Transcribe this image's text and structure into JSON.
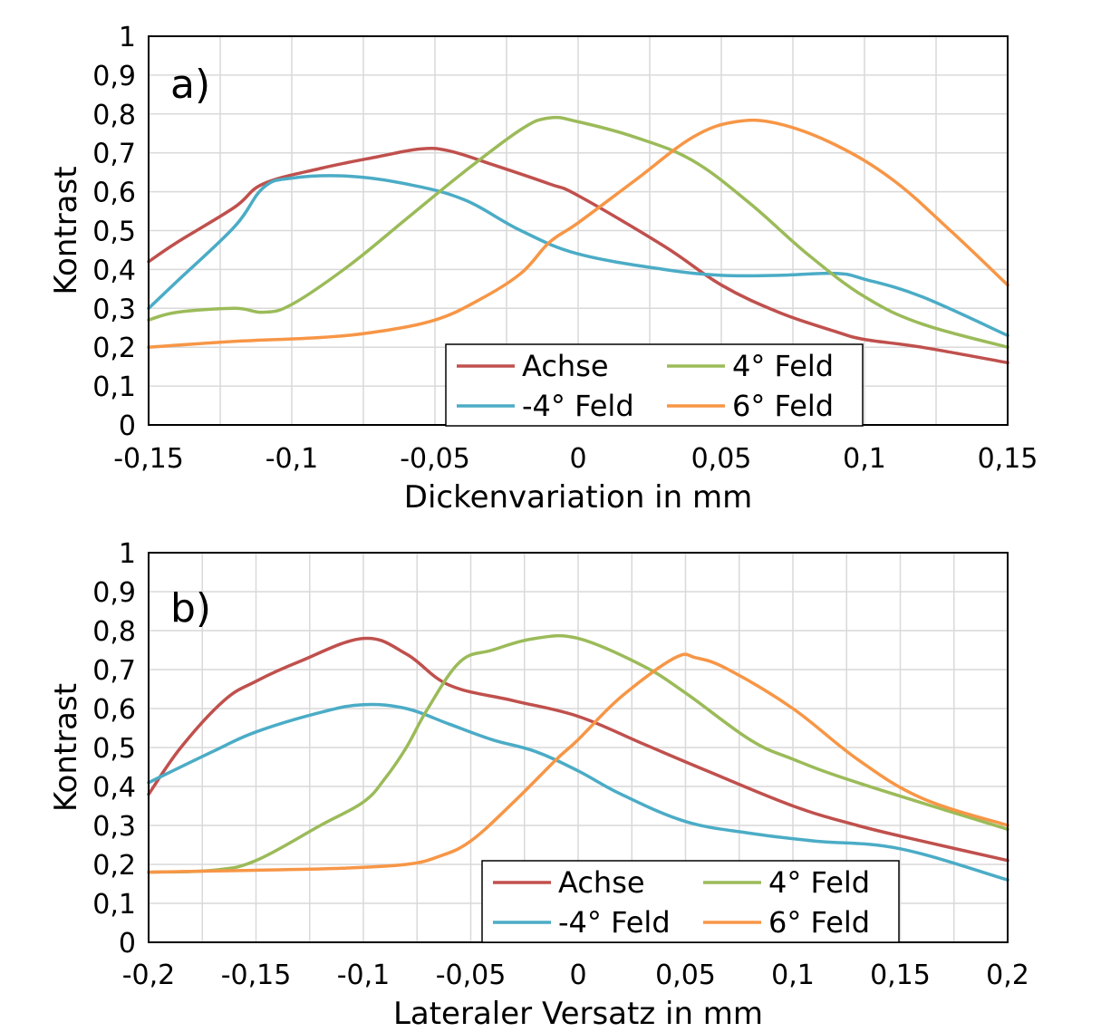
{
  "colors": {
    "achse": "#c0504d",
    "minus4_feld": "#4bacc6",
    "plus4_feld": "#9bbb59",
    "plus6_feld": "#f79646",
    "grid": "#d9d9d9",
    "frame": "#000000"
  },
  "chart_data": [
    {
      "type": "line",
      "panel_label": "a)",
      "xlabel": "Dickenvariation in mm",
      "ylabel": "Kontrast",
      "xlim": [
        -0.15,
        0.15
      ],
      "ylim": [
        0,
        1
      ],
      "x_ticks": [
        -0.15,
        -0.1,
        -0.05,
        0,
        0.05,
        0.1,
        0.15
      ],
      "x_tick_labels": [
        "-0,15",
        "-0,1",
        "-0,05",
        "0",
        "0,05",
        "0,1",
        "0,15"
      ],
      "y_ticks": [
        0,
        0.1,
        0.2,
        0.3,
        0.4,
        0.5,
        0.6,
        0.7,
        0.8,
        0.9,
        1
      ],
      "y_tick_labels": [
        "0",
        "0,1",
        "0,2",
        "0,3",
        "0,4",
        "0,5",
        "0,6",
        "0,7",
        "0,8",
        "0,9",
        "1"
      ],
      "grid": true,
      "legend_placement": "bottom-right",
      "series": [
        {
          "name": "Achse",
          "color_key": "achse",
          "x": [
            -0.15,
            -0.14,
            -0.12,
            -0.11,
            -0.09,
            -0.07,
            -0.055,
            -0.045,
            -0.03,
            -0.01,
            0.0,
            0.03,
            0.05,
            0.07,
            0.09,
            0.1,
            0.12,
            0.15
          ],
          "y": [
            0.42,
            0.47,
            0.56,
            0.62,
            0.66,
            0.69,
            0.71,
            0.705,
            0.67,
            0.62,
            0.59,
            0.46,
            0.36,
            0.29,
            0.24,
            0.22,
            0.2,
            0.16
          ]
        },
        {
          "name": "-4°  Feld",
          "color_key": "minus4_feld",
          "x": [
            -0.15,
            -0.14,
            -0.12,
            -0.11,
            -0.1,
            -0.08,
            -0.06,
            -0.04,
            -0.02,
            0.0,
            0.03,
            0.05,
            0.07,
            0.09,
            0.1,
            0.12,
            0.15
          ],
          "y": [
            0.3,
            0.37,
            0.51,
            0.61,
            0.635,
            0.64,
            0.62,
            0.58,
            0.5,
            0.44,
            0.4,
            0.385,
            0.385,
            0.39,
            0.375,
            0.33,
            0.23
          ]
        },
        {
          "name": "4°  Feld",
          "color_key": "plus4_feld",
          "x": [
            -0.15,
            -0.14,
            -0.12,
            -0.11,
            -0.1,
            -0.08,
            -0.06,
            -0.04,
            -0.02,
            -0.01,
            0.0,
            0.02,
            0.04,
            0.06,
            0.08,
            0.1,
            0.12,
            0.15
          ],
          "y": [
            0.27,
            0.29,
            0.3,
            0.29,
            0.31,
            0.41,
            0.53,
            0.65,
            0.76,
            0.79,
            0.78,
            0.74,
            0.68,
            0.57,
            0.44,
            0.33,
            0.26,
            0.2
          ]
        },
        {
          "name": "6°  Feld",
          "color_key": "plus6_feld",
          "x": [
            -0.15,
            -0.12,
            -0.09,
            -0.07,
            -0.05,
            -0.035,
            -0.02,
            -0.01,
            0.0,
            0.02,
            0.04,
            0.055,
            0.07,
            0.09,
            0.11,
            0.13,
            0.15
          ],
          "y": [
            0.2,
            0.215,
            0.225,
            0.24,
            0.27,
            0.32,
            0.39,
            0.47,
            0.52,
            0.63,
            0.74,
            0.78,
            0.775,
            0.72,
            0.63,
            0.5,
            0.36
          ]
        }
      ]
    },
    {
      "type": "line",
      "panel_label": "b)",
      "xlabel": "Lateraler Versatz in mm",
      "ylabel": "Kontrast",
      "xlim": [
        -0.2,
        0.2
      ],
      "ylim": [
        0,
        1
      ],
      "x_ticks": [
        -0.2,
        -0.15,
        -0.1,
        -0.05,
        0,
        0.05,
        0.1,
        0.15,
        0.2
      ],
      "x_tick_labels": [
        "-0,2",
        "-0,15",
        "-0,1",
        "-0,05",
        "0",
        "0,05",
        "0,1",
        "0,15",
        "0,2"
      ],
      "y_ticks": [
        0,
        0.1,
        0.2,
        0.3,
        0.4,
        0.5,
        0.6,
        0.7,
        0.8,
        0.9,
        1
      ],
      "y_tick_labels": [
        "0",
        "0,1",
        "0,2",
        "0,3",
        "0,4",
        "0,5",
        "0,6",
        "0,7",
        "0,8",
        "0,9",
        "1"
      ],
      "grid": true,
      "legend_placement": "bottom-right",
      "series": [
        {
          "name": "Achse",
          "color_key": "achse",
          "x": [
            -0.2,
            -0.185,
            -0.165,
            -0.15,
            -0.13,
            -0.1,
            -0.08,
            -0.06,
            -0.03,
            0.0,
            0.03,
            0.06,
            0.1,
            0.13,
            0.16,
            0.2
          ],
          "y": [
            0.38,
            0.5,
            0.62,
            0.67,
            0.72,
            0.78,
            0.74,
            0.66,
            0.62,
            0.58,
            0.51,
            0.44,
            0.35,
            0.3,
            0.26,
            0.21
          ]
        },
        {
          "name": "-4°  Feld",
          "color_key": "minus4_feld",
          "x": [
            -0.2,
            -0.17,
            -0.15,
            -0.12,
            -0.1,
            -0.08,
            -0.06,
            -0.04,
            -0.02,
            0.0,
            0.02,
            0.05,
            0.08,
            0.11,
            0.15,
            0.2
          ],
          "y": [
            0.41,
            0.49,
            0.54,
            0.59,
            0.61,
            0.6,
            0.56,
            0.52,
            0.49,
            0.44,
            0.38,
            0.31,
            0.28,
            0.26,
            0.24,
            0.16
          ]
        },
        {
          "name": "4°  Feld",
          "color_key": "plus4_feld",
          "x": [
            -0.2,
            -0.17,
            -0.15,
            -0.12,
            -0.1,
            -0.09,
            -0.08,
            -0.07,
            -0.055,
            -0.04,
            -0.02,
            0.0,
            0.03,
            0.05,
            0.08,
            0.1,
            0.13,
            0.2
          ],
          "y": [
            0.18,
            0.185,
            0.21,
            0.3,
            0.36,
            0.42,
            0.5,
            0.6,
            0.72,
            0.75,
            0.78,
            0.78,
            0.71,
            0.64,
            0.52,
            0.47,
            0.41,
            0.29
          ]
        },
        {
          "name": "6°  Feld",
          "color_key": "plus6_feld",
          "x": [
            -0.2,
            -0.15,
            -0.11,
            -0.08,
            -0.065,
            -0.05,
            -0.03,
            -0.01,
            0.0,
            0.02,
            0.045,
            0.055,
            0.07,
            0.1,
            0.13,
            0.16,
            0.2
          ],
          "y": [
            0.18,
            0.185,
            0.19,
            0.2,
            0.22,
            0.26,
            0.36,
            0.47,
            0.52,
            0.63,
            0.73,
            0.73,
            0.7,
            0.6,
            0.47,
            0.37,
            0.3
          ]
        }
      ]
    }
  ]
}
